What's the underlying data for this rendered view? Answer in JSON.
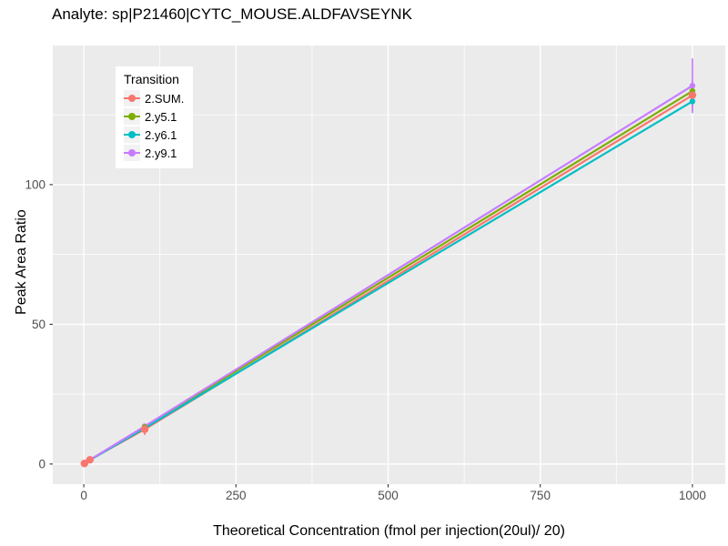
{
  "figure": {
    "background": "#FFFFFF",
    "panel_background": "#EBEBEB",
    "grid_color": "#FFFFFF",
    "tick_label_color": "#4D4D4D",
    "tick_mark_color": "#333333"
  },
  "chart_data": {
    "type": "line",
    "title": "Analyte: sp|P21460|CYTC_MOUSE.ALDFAVSEYNK",
    "xlabel": "Theoretical Concentration (fmol per injection(20ul)/ 20)",
    "ylabel": "Peak Area Ratio",
    "legend_title": "Transition",
    "legend_position": "top-left-inside",
    "grid": true,
    "xlim": [
      -51,
      1054
    ],
    "ylim": [
      -7.2,
      149.8
    ],
    "x_ticks": [
      0,
      250,
      500,
      750,
      1000
    ],
    "y_ticks": [
      0,
      50,
      100
    ],
    "x_minor_ticks": [
      125,
      375,
      625,
      875
    ],
    "y_minor_ticks": [
      25,
      75,
      125
    ],
    "series": [
      {
        "name": "2.SUM.",
        "color": "#F8766D",
        "point_radius": 4.2,
        "x": [
          1,
          10,
          100,
          1000
        ],
        "y": [
          0.2,
          1.5,
          12.4,
          132.0
        ],
        "error_y": [
          0,
          0,
          2.0,
          5.5
        ]
      },
      {
        "name": "2.y5.1",
        "color": "#7CAE00",
        "point_radius": 3.2,
        "x": [
          1,
          10,
          100,
          1000
        ],
        "y": [
          0.2,
          1.5,
          13.2,
          133.5
        ],
        "error_y": [
          0,
          0,
          0,
          2.0
        ]
      },
      {
        "name": "2.y6.1",
        "color": "#00BFC4",
        "point_radius": 3.2,
        "x": [
          1,
          10,
          100,
          1000
        ],
        "y": [
          0.2,
          1.4,
          12.8,
          129.8
        ],
        "error_y": [
          0,
          0,
          0,
          1.5
        ]
      },
      {
        "name": "2.y9.1",
        "color": "#C77CFF",
        "point_radius": 3.2,
        "x": [
          1,
          10,
          100,
          1000
        ],
        "y": [
          0.2,
          1.5,
          13.5,
          135.4
        ],
        "error_y": [
          0,
          0,
          0,
          9.8
        ]
      }
    ]
  }
}
